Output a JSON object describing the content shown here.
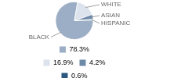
{
  "chart_data": {
    "type": "pie",
    "categories": [
      "BLACK",
      "WHITE",
      "ASIAN",
      "HISPANIC"
    ],
    "values": [
      78.3,
      16.9,
      4.2,
      0.6
    ],
    "value_labels": [
      "78.3%",
      "16.9%",
      "4.2%",
      "0.6%"
    ],
    "colors": [
      "#9caec5",
      "#dce3ec",
      "#6d89a8",
      "#2c5880"
    ],
    "legend": "bottom"
  }
}
